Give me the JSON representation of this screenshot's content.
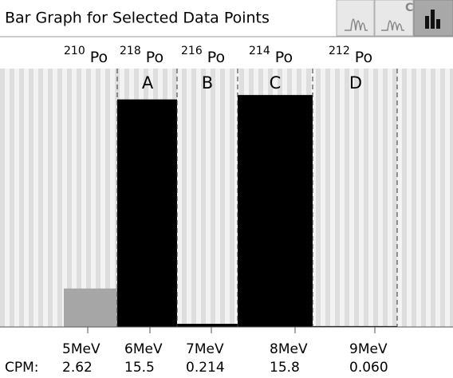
{
  "chart_data": {
    "type": "bar",
    "title": "Bar Graph for Selected Data Points",
    "toolbar_badge": "C",
    "isotopes": [
      {
        "mass": "210",
        "symbol": "Po"
      },
      {
        "mass": "218",
        "symbol": "Po"
      },
      {
        "mass": "216",
        "symbol": "Po"
      },
      {
        "mass": "214",
        "symbol": "Po"
      },
      {
        "mass": "212",
        "symbol": "Po"
      }
    ],
    "regions": [
      "A",
      "B",
      "C",
      "D"
    ],
    "categories": [
      "5MeV",
      "6MeV",
      "7MeV",
      "8MeV",
      "9MeV"
    ],
    "value_caption": "CPM:",
    "values": [
      2.62,
      15.5,
      0.214,
      15.8,
      0.06
    ],
    "value_labels": [
      "2.62",
      "15.5",
      "0.214",
      "15.8",
      "0.060"
    ],
    "colors": [
      "#a6a6a6",
      "#000000",
      "#000000",
      "#000000",
      "#000000"
    ],
    "ylim": [
      0,
      17.6
    ]
  }
}
